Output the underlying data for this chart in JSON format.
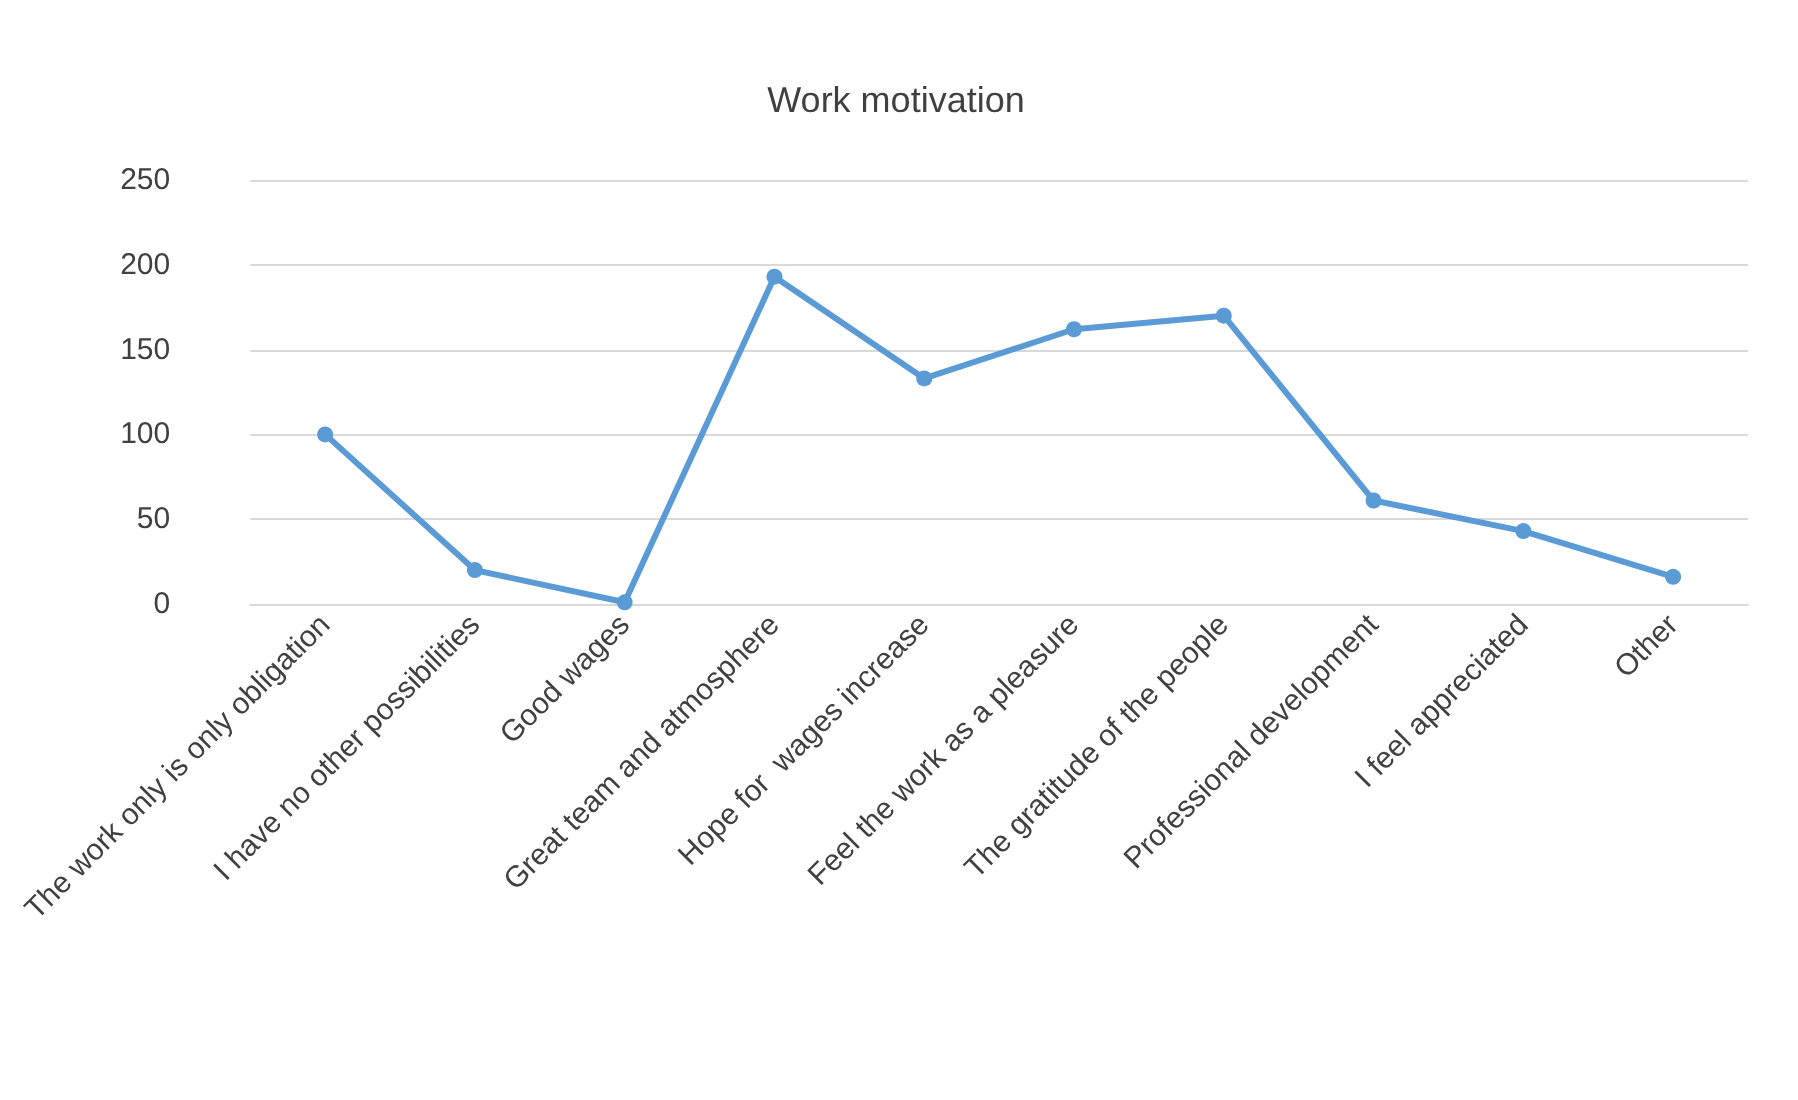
{
  "chart_data": {
    "type": "line",
    "title": "Work motivation",
    "categories": [
      "The work only is only obligation",
      "I have no other possibilities",
      "Good wages",
      "Great team and atmosphere",
      "Hope for  wages increase",
      "Feel the work as a pleasure",
      "The gratitude of the people",
      "Professional development",
      "I feel appreciated",
      "Other"
    ],
    "series": [
      {
        "color": "#5b9bd5",
        "values": [
          100,
          20,
          1,
          193,
          133,
          162,
          170,
          61,
          43,
          16
        ]
      }
    ],
    "ylim": [
      0,
      250
    ],
    "yticks": [
      0,
      50,
      100,
      150,
      200,
      250
    ],
    "grid": "y",
    "marker": "circle",
    "line_style": "solid"
  }
}
